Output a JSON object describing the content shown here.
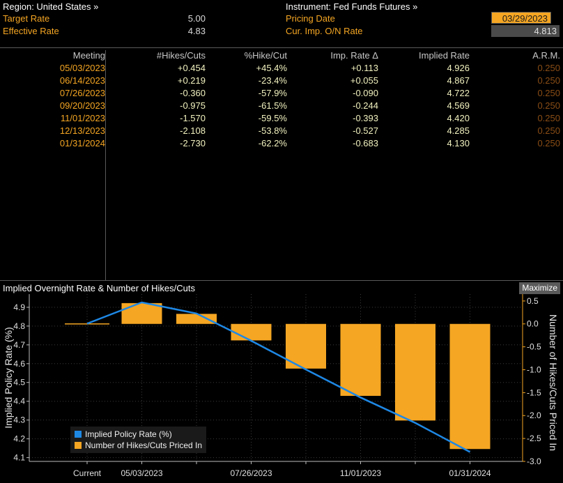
{
  "header": {
    "region_label": "Region: United States »",
    "target_rate_label": "Target Rate",
    "target_rate_value": "5.00",
    "effective_rate_label": "Effective Rate",
    "effective_rate_value": "4.83",
    "instrument_label": "Instrument: Fed Funds Futures »",
    "pricing_date_label": "Pricing Date",
    "pricing_date_value": "03/29/2023",
    "cur_imp_label": "Cur. Imp. O/N Rate",
    "cur_imp_value": "4.813"
  },
  "table": {
    "headers": [
      "Meeting",
      "#Hikes/Cuts",
      "%Hike/Cut",
      "Imp. Rate Δ",
      "Implied Rate",
      "A.R.M."
    ],
    "rows": [
      [
        "05/03/2023",
        "+0.454",
        "+45.4%",
        "+0.113",
        "4.926",
        "0.250"
      ],
      [
        "06/14/2023",
        "+0.219",
        "-23.4%",
        "+0.055",
        "4.867",
        "0.250"
      ],
      [
        "07/26/2023",
        "-0.360",
        "-57.9%",
        "-0.090",
        "4.722",
        "0.250"
      ],
      [
        "09/20/2023",
        "-0.975",
        "-61.5%",
        "-0.244",
        "4.569",
        "0.250"
      ],
      [
        "11/01/2023",
        "-1.570",
        "-59.5%",
        "-0.393",
        "4.420",
        "0.250"
      ],
      [
        "12/13/2023",
        "-2.108",
        "-53.8%",
        "-0.527",
        "4.285",
        "0.250"
      ],
      [
        "01/31/2024",
        "-2.730",
        "-62.2%",
        "-0.683",
        "4.130",
        "0.250"
      ]
    ]
  },
  "chart_title": "Implied Overnight Rate & Number of Hikes/Cuts",
  "maximize_label": "Maximize",
  "colors": {
    "accent": "#f5a623",
    "line": "#1e88e5",
    "background": "#000000"
  },
  "chart_data": {
    "type": "bar",
    "title": "Implied Overnight Rate & Number of Hikes/Cuts",
    "categories": [
      "Current",
      "05/03/2023",
      "06/14/2023",
      "07/26/2023",
      "09/20/2023",
      "11/01/2023",
      "12/13/2023",
      "01/31/2024"
    ],
    "x_tick_labels": [
      "Current",
      "05/03/2023",
      "07/26/2023",
      "11/01/2023",
      "01/31/2024"
    ],
    "ylabel_left": "Implied Policy Rate (%)",
    "ylabel_right": "Number of Hikes/Cuts Priced In",
    "ylim_left": [
      4.08,
      4.97
    ],
    "ylim_right": [
      -3.0,
      0.65
    ],
    "yticks_left": [
      "4.1",
      "4.2",
      "4.3",
      "4.4",
      "4.5",
      "4.6",
      "4.7",
      "4.8",
      "4.9"
    ],
    "yticks_right": [
      "0.5",
      "0.0",
      "-0.5",
      "-1.0",
      "-1.5",
      "-2.0",
      "-2.5",
      "-3.0"
    ],
    "series": [
      {
        "name": "Implied Policy Rate (%)",
        "type": "line",
        "axis": "left",
        "values": [
          4.813,
          4.926,
          4.867,
          4.722,
          4.569,
          4.42,
          4.285,
          4.13
        ]
      },
      {
        "name": "Number of Hikes/Cuts Priced In",
        "type": "bar",
        "axis": "right",
        "values": [
          0.0,
          0.454,
          0.219,
          -0.36,
          -0.975,
          -1.57,
          -2.108,
          -2.73
        ]
      }
    ],
    "legend_position": "bottom-left"
  }
}
